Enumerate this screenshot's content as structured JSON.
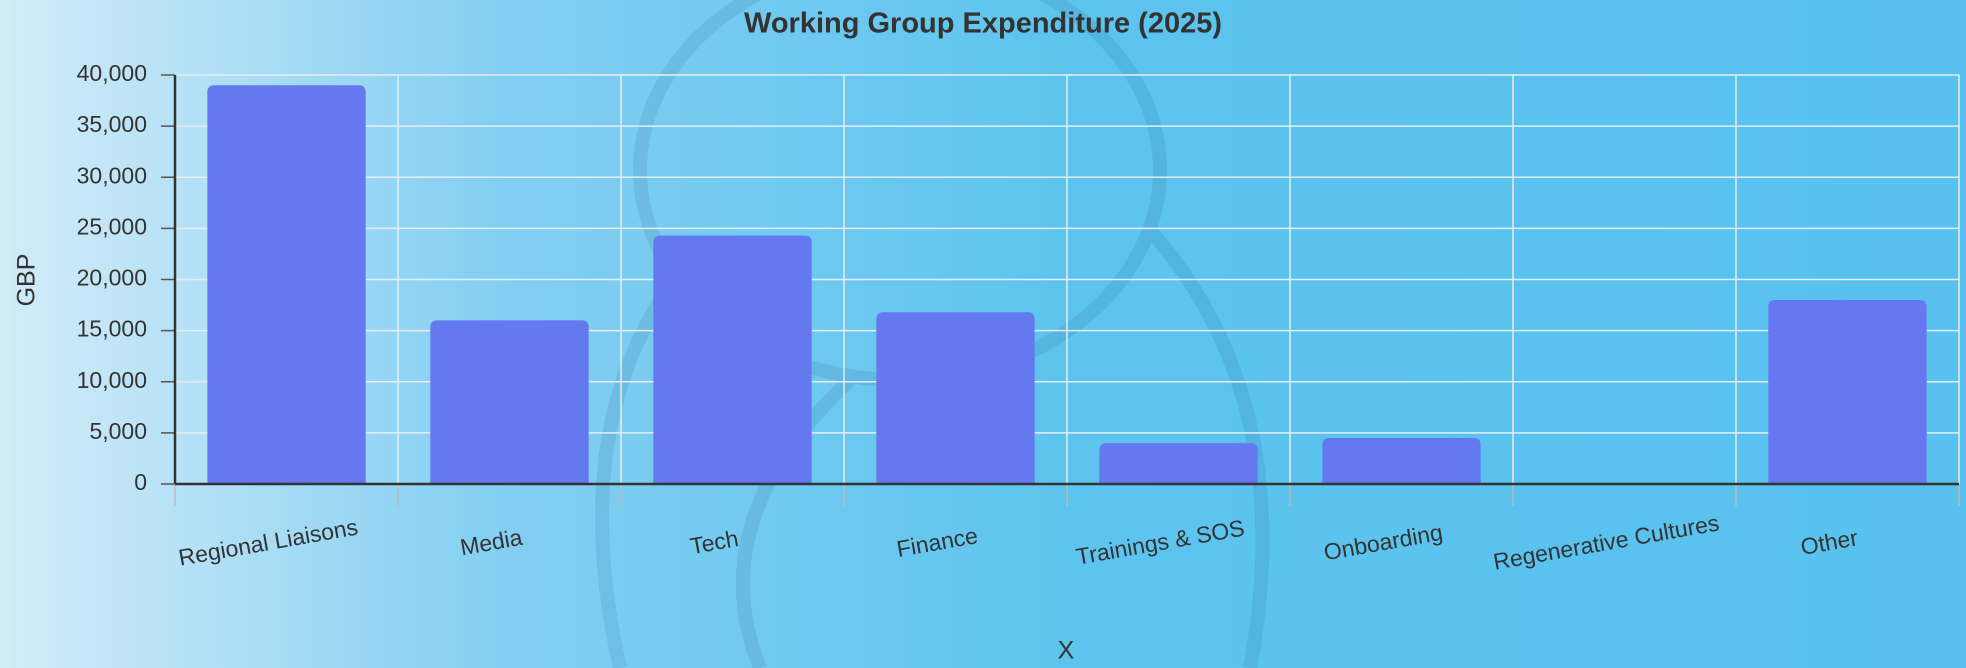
{
  "chart_data": {
    "type": "bar",
    "title": "Working Group Expenditure (2025)",
    "x_label": "X",
    "y_label": "GBP",
    "categories": [
      "Regional Liaisons",
      "Media",
      "Tech",
      "Finance",
      "Trainings & SOS",
      "Onboarding",
      "Regenerative Cultures",
      "Other"
    ],
    "values": [
      39000,
      16000,
      24300,
      16800,
      4000,
      4500,
      0,
      18000
    ],
    "color": "#6479f0",
    "ylim": [
      0,
      40000
    ],
    "yticks": [
      0,
      {
        "value": 5000,
        "label": "5,000"
      },
      {
        "value": 10000,
        "label": "10,000"
      },
      {
        "value": 15000,
        "label": "15,000"
      },
      {
        "value": 20000,
        "label": "20,000"
      },
      {
        "value": 25000,
        "label": "25,000"
      },
      {
        "value": 30000,
        "label": "30,000"
      },
      {
        "value": 35000,
        "label": "35,000"
      },
      {
        "value": 40000,
        "label": "40,000"
      }
    ],
    "grid": true
  }
}
